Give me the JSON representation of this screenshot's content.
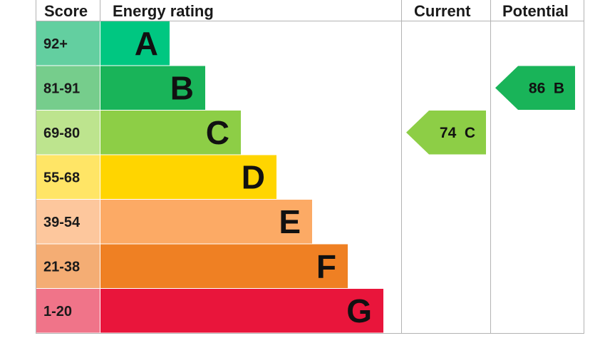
{
  "headers": {
    "score": "Score",
    "rating": "Energy rating",
    "current": "Current",
    "potential": "Potential"
  },
  "chart_data": {
    "type": "bar",
    "title": "",
    "bands": [
      {
        "letter": "A",
        "range": "92+",
        "color": "#00c781",
        "score_color": "#63cfa0"
      },
      {
        "letter": "B",
        "range": "81-91",
        "color": "#19b459",
        "score_color": "#76cd8c"
      },
      {
        "letter": "C",
        "range": "69-80",
        "color": "#8dce46",
        "score_color": "#bde48e"
      },
      {
        "letter": "D",
        "range": "55-68",
        "color": "#ffd500",
        "score_color": "#ffe566"
      },
      {
        "letter": "E",
        "range": "39-54",
        "color": "#fcaa65",
        "score_color": "#fdc79d"
      },
      {
        "letter": "F",
        "range": "21-38",
        "color": "#ef8023",
        "score_color": "#f4ad74"
      },
      {
        "letter": "G",
        "range": "1-20",
        "color": "#e9153b",
        "score_color": "#f07489"
      }
    ],
    "current": {
      "score": 74,
      "letter": "C",
      "label": "74  C",
      "color": "#8dce46"
    },
    "potential": {
      "score": 86,
      "letter": "B",
      "label": "86  B",
      "color": "#19b459"
    }
  }
}
